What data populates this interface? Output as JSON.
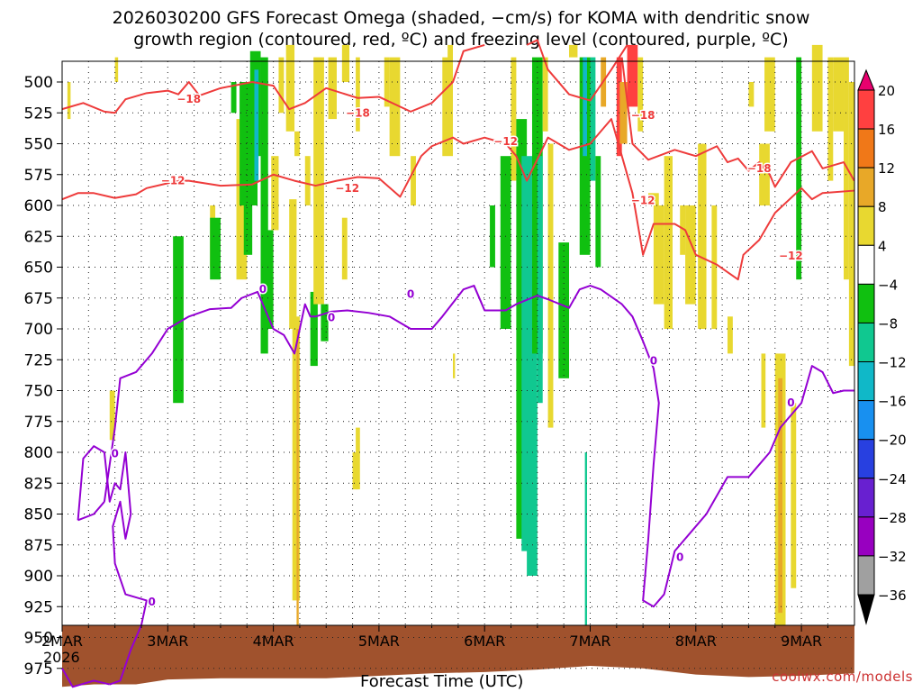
{
  "title_line1": "2026030200 GFS Forecast Omega (shaded, −cm/s) for KOMA with dendritic snow",
  "title_line2": "growth region (contoured, red, ºC) and freezing level (contoured, purple, ºC)",
  "credit": "coolwx.com/models",
  "chart_data": {
    "type": "heatmap",
    "xlabel": "Forecast Time (UTC)",
    "x_ticks": [
      "2MAR",
      "3MAR",
      "4MAR",
      "5MAR",
      "6MAR",
      "7MAR",
      "8MAR",
      "9MAR"
    ],
    "x_year": "2026",
    "y_ticks": [
      500,
      525,
      550,
      575,
      600,
      625,
      650,
      675,
      700,
      725,
      750,
      775,
      800,
      825,
      850,
      875,
      900,
      925,
      950,
      975
    ],
    "y_axis": "pressure (hPa), inverted",
    "x_range_days": [
      0,
      7.5
    ],
    "colorbar": {
      "labels": [
        "20",
        "16",
        "12",
        "8",
        "4",
        "−4",
        "−8",
        "−12",
        "−16",
        "−20",
        "−24",
        "−28",
        "−32",
        "−36"
      ],
      "colors": [
        "#e8006e",
        "#ff4040",
        "#f07818",
        "#e8a828",
        "#e8d830",
        "#ffffff",
        "#10c010",
        "#10c890",
        "#10b8c8",
        "#1890f0",
        "#2840e0",
        "#6820d0",
        "#9800c0",
        "#a0a0a0",
        "#000000"
      ]
    },
    "contour_labels": {
      "red": [
        {
          "text": "−18",
          "day": 1.2,
          "p": 514
        },
        {
          "text": "−18",
          "day": 2.8,
          "p": 525
        },
        {
          "text": "−18",
          "day": 5.5,
          "p": 527
        },
        {
          "text": "−18",
          "day": 6.6,
          "p": 570
        },
        {
          "text": "−12",
          "day": 1.05,
          "p": 580
        },
        {
          "text": "−12",
          "day": 2.7,
          "p": 586
        },
        {
          "text": "−12",
          "day": 4.2,
          "p": 548
        },
        {
          "text": "−12",
          "day": 5.5,
          "p": 596
        },
        {
          "text": "−12",
          "day": 6.9,
          "p": 641
        }
      ],
      "purple": [
        {
          "text": "0",
          "day": 0.5,
          "p": 801
        },
        {
          "text": "0",
          "day": 0.85,
          "p": 921
        },
        {
          "text": "0",
          "day": 1.9,
          "p": 668
        },
        {
          "text": "0",
          "day": 2.55,
          "p": 691
        },
        {
          "text": "0",
          "day": 3.3,
          "p": 672
        },
        {
          "text": "0",
          "day": 5.6,
          "p": 726
        },
        {
          "text": "0",
          "day": 5.85,
          "p": 885
        },
        {
          "text": "0",
          "day": 6.9,
          "p": 760
        }
      ]
    }
  }
}
